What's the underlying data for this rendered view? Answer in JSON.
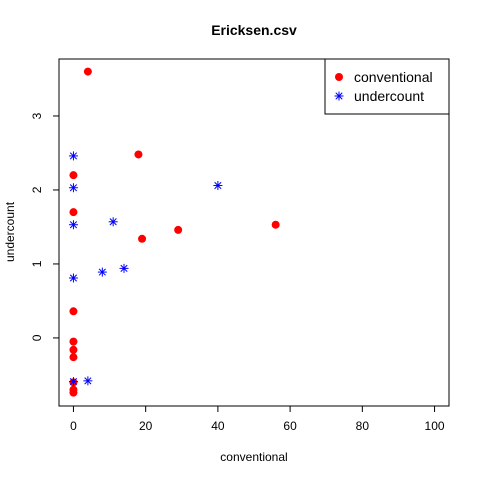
{
  "chart_data": {
    "type": "scatter",
    "title": "Ericksen.csv",
    "xlabel": "conventional",
    "ylabel": "undercount",
    "xlim": [
      -4,
      104
    ],
    "ylim": [
      -0.92,
      3.77
    ],
    "x_ticks": [
      0,
      20,
      40,
      60,
      80,
      100
    ],
    "y_ticks": [
      0,
      1,
      2,
      3
    ],
    "grid": false,
    "legend_position": "top-right",
    "series": [
      {
        "name": "conventional",
        "marker": "filled-circle",
        "color": "#ff0000",
        "points": [
          {
            "x": 4,
            "y": 3.6
          },
          {
            "x": 18,
            "y": 2.48
          },
          {
            "x": 0,
            "y": 2.2
          },
          {
            "x": 0,
            "y": 1.7
          },
          {
            "x": 56,
            "y": 1.53
          },
          {
            "x": 29,
            "y": 1.46
          },
          {
            "x": 19,
            "y": 1.34
          },
          {
            "x": 0,
            "y": 0.36
          },
          {
            "x": 0,
            "y": -0.05
          },
          {
            "x": 0,
            "y": -0.16
          },
          {
            "x": 0,
            "y": -0.26
          },
          {
            "x": 0,
            "y": -0.6
          },
          {
            "x": 0,
            "y": -0.7
          },
          {
            "x": 0,
            "y": -0.74
          }
        ]
      },
      {
        "name": "undercount",
        "marker": "asterisk",
        "color": "#0000ff",
        "points": [
          {
            "x": 0,
            "y": 2.46
          },
          {
            "x": 0,
            "y": 2.03
          },
          {
            "x": 40,
            "y": 2.06
          },
          {
            "x": 11,
            "y": 1.57
          },
          {
            "x": 0,
            "y": 1.53
          },
          {
            "x": 14,
            "y": 0.94
          },
          {
            "x": 8,
            "y": 0.89
          },
          {
            "x": 0,
            "y": 0.81
          },
          {
            "x": 4,
            "y": -0.58
          },
          {
            "x": 0,
            "y": -0.59
          }
        ]
      }
    ]
  }
}
